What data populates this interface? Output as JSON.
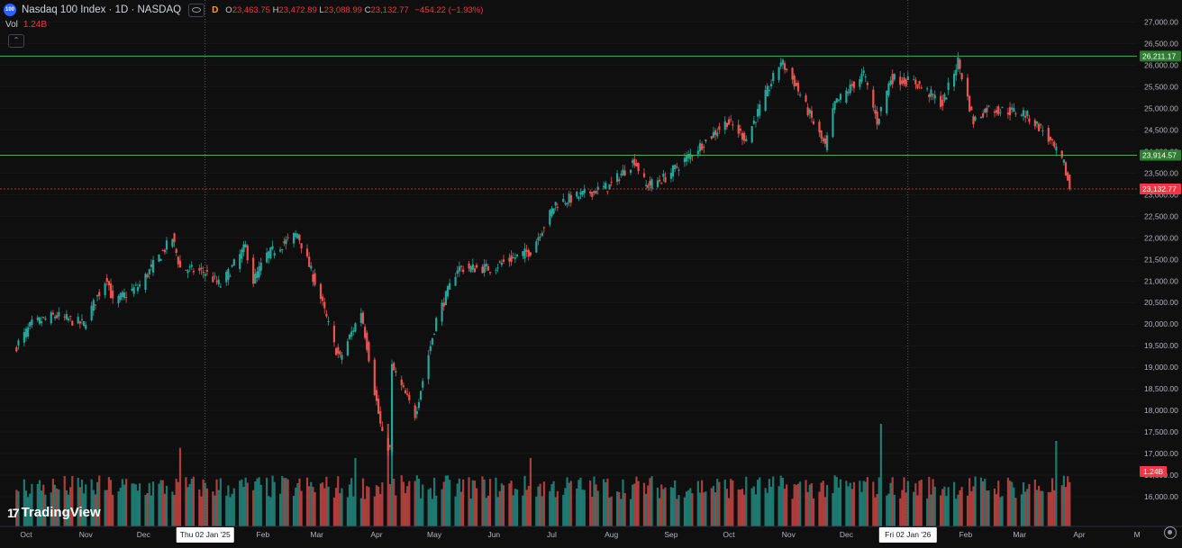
{
  "header": {
    "icon_text": "100",
    "title": "Nasdaq 100 Index · 1D · NASDAQ",
    "badge": "D",
    "open_label": "O",
    "open": "23,463.75",
    "high_label": "H",
    "high": "23,472.89",
    "low_label": "L",
    "low": "23,088.99",
    "close_label": "C",
    "close": "23,132.77",
    "change": "−454.22 (−1.93%)"
  },
  "volume_legend": {
    "label": "Vol",
    "value": "1.24B"
  },
  "branding": {
    "logo_mark": "17",
    "name": "TradingView"
  },
  "colors": {
    "up": "#26a69a",
    "down": "#ef5350",
    "grid": "#2a2e39",
    "level": "#4caf50",
    "last": "#f23645"
  },
  "chart_data": {
    "type": "candlestick",
    "title": "Nasdaq 100 Index · 1D · NASDAQ",
    "y_axis": {
      "min": 15750,
      "max": 27200,
      "ticks": [
        "27,000.00",
        "26,500.00",
        "26,000.00",
        "25,500.00",
        "25,000.00",
        "24,500.00",
        "24,000.00",
        "23,500.00",
        "23,000.00",
        "22,500.00",
        "22,000.00",
        "21,500.00",
        "21,000.00",
        "20,500.00",
        "20,000.00",
        "19,500.00",
        "19,000.00",
        "18,500.00",
        "18,000.00",
        "17,500.00",
        "17,000.00",
        "16,500.00",
        "16,000.00"
      ],
      "tick_values": [
        27000,
        26500,
        26000,
        25500,
        25000,
        24500,
        24000,
        23500,
        23000,
        22500,
        22000,
        21500,
        21000,
        20500,
        20000,
        19500,
        19000,
        18500,
        18000,
        17500,
        17000,
        16500,
        16000
      ]
    },
    "x_axis": {
      "labels": [
        "Oct",
        "Nov",
        "Dec",
        "Thu 02 Jan '25",
        "Feb",
        "Mar",
        "Apr",
        "May",
        "Jun",
        "Jul",
        "Aug",
        "Sep",
        "Oct",
        "Nov",
        "Dec",
        "Fri 02 Jan '26",
        "Feb",
        "Mar",
        "Apr",
        "M"
      ],
      "highlighted": [
        "Thu 02 Jan '25",
        "Fri 02 Jan '26"
      ]
    },
    "price_anchors": [
      [
        "2024-09-26",
        19500
      ],
      [
        "2024-10-04",
        20000
      ],
      [
        "2024-10-16",
        20200
      ],
      [
        "2024-10-31",
        20000
      ],
      [
        "2024-11-12",
        21100
      ],
      [
        "2024-11-15",
        20500
      ],
      [
        "2024-11-29",
        20900
      ],
      [
        "2024-12-05",
        21300
      ],
      [
        "2024-12-16",
        22000
      ],
      [
        "2024-12-20",
        21300
      ],
      [
        "2025-01-02",
        21200
      ],
      [
        "2025-01-10",
        20900
      ],
      [
        "2025-01-23",
        21800
      ],
      [
        "2025-01-27",
        21000
      ],
      [
        "2025-02-03",
        21600
      ],
      [
        "2025-02-19",
        22100
      ],
      [
        "2025-03-03",
        20600
      ],
      [
        "2025-03-10",
        19500
      ],
      [
        "2025-03-13",
        19200
      ],
      [
        "2025-03-24",
        20300
      ],
      [
        "2025-04-04",
        17400
      ],
      [
        "2025-04-08",
        17100
      ],
      [
        "2025-04-09",
        19000
      ],
      [
        "2025-04-21",
        17900
      ],
      [
        "2025-05-02",
        20100
      ],
      [
        "2025-05-13",
        21300
      ],
      [
        "2025-05-30",
        21300
      ],
      [
        "2025-06-20",
        21700
      ],
      [
        "2025-07-03",
        22800
      ],
      [
        "2025-07-31",
        23200
      ],
      [
        "2025-08-13",
        23800
      ],
      [
        "2025-08-19",
        23200
      ],
      [
        "2025-08-29",
        23400
      ],
      [
        "2025-09-30",
        24700
      ],
      [
        "2025-10-10",
        24300
      ],
      [
        "2025-10-28",
        26100
      ],
      [
        "2025-11-04",
        25600
      ],
      [
        "2025-11-20",
        24100
      ],
      [
        "2025-11-25",
        25100
      ],
      [
        "2025-12-10",
        25800
      ],
      [
        "2025-12-17",
        24700
      ],
      [
        "2025-12-24",
        25700
      ],
      [
        "2026-01-06",
        25600
      ],
      [
        "2026-01-20",
        25100
      ],
      [
        "2026-01-28",
        26100
      ],
      [
        "2026-02-05",
        24700
      ],
      [
        "2026-02-12",
        25000
      ],
      [
        "2026-03-03",
        24900
      ],
      [
        "2026-03-13",
        24500
      ],
      [
        "2026-03-24",
        23700
      ],
      [
        "2026-03-27",
        23132.77
      ]
    ],
    "last_candle": {
      "open": 23463.75,
      "high": 23472.89,
      "low": 23088.99,
      "close": 23132.77
    },
    "levels": [
      {
        "label": "26,211.17",
        "value": 26211.17
      },
      {
        "label": "23,914.57",
        "value": 23914.57
      }
    ],
    "last_price_label": "23,132.77",
    "volume_badge": "1.24B",
    "volume_spikes": [
      [
        "2024-09-20",
        2.3
      ],
      [
        "2024-12-20",
        2.3
      ],
      [
        "2025-03-21",
        2.0
      ],
      [
        "2025-04-07",
        3.0
      ],
      [
        "2025-04-09",
        2.6
      ],
      [
        "2025-06-20",
        2.0
      ],
      [
        "2025-12-19",
        3.0
      ],
      [
        "2026-03-20",
        2.5
      ]
    ]
  }
}
